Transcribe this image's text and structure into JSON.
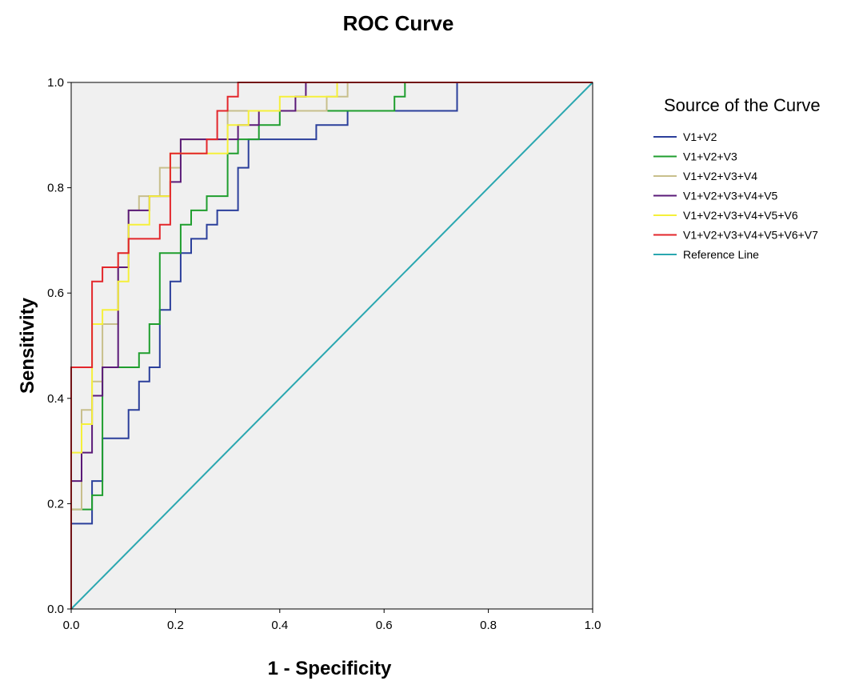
{
  "chart_data": {
    "type": "line",
    "title": "ROC Curve",
    "xlabel": "1 - Specificity",
    "ylabel": "Sensitivity",
    "xlim": [
      0.0,
      1.0
    ],
    "ylim": [
      0.0,
      1.0
    ],
    "xticks": [
      "0.0",
      "0.2",
      "0.4",
      "0.6",
      "0.8",
      "1.0"
    ],
    "yticks": [
      "0.0",
      "0.2",
      "0.4",
      "0.6",
      "0.8",
      "1.0"
    ],
    "grid": false,
    "plot_background": "#f0f0f0",
    "legend": {
      "title": "Source of the Curve",
      "position": "right"
    },
    "series": [
      {
        "name": "V1+V2",
        "color": "#2b3f9b",
        "x": [
          0.0,
          0.0,
          0.04,
          0.04,
          0.06,
          0.06,
          0.11,
          0.11,
          0.13,
          0.13,
          0.15,
          0.15,
          0.17,
          0.17,
          0.19,
          0.19,
          0.21,
          0.21,
          0.23,
          0.23,
          0.26,
          0.26,
          0.28,
          0.28,
          0.32,
          0.32,
          0.34,
          0.34,
          0.4,
          0.4,
          0.47,
          0.47,
          0.53,
          0.53,
          0.74,
          0.74,
          1.0
        ],
        "y": [
          0.0,
          0.162,
          0.162,
          0.243,
          0.243,
          0.324,
          0.324,
          0.378,
          0.378,
          0.432,
          0.432,
          0.459,
          0.459,
          0.568,
          0.568,
          0.622,
          0.622,
          0.676,
          0.676,
          0.703,
          0.703,
          0.73,
          0.73,
          0.757,
          0.757,
          0.838,
          0.838,
          0.892,
          0.892,
          0.892,
          0.892,
          0.919,
          0.919,
          0.946,
          0.946,
          1.0,
          1.0
        ]
      },
      {
        "name": "V1+V2+V3",
        "color": "#1f9e2e",
        "x": [
          0.0,
          0.0,
          0.04,
          0.04,
          0.06,
          0.06,
          0.11,
          0.11,
          0.13,
          0.13,
          0.15,
          0.15,
          0.17,
          0.17,
          0.21,
          0.21,
          0.23,
          0.23,
          0.26,
          0.26,
          0.3,
          0.3,
          0.32,
          0.32,
          0.36,
          0.36,
          0.4,
          0.4,
          0.62,
          0.62,
          0.64,
          0.64,
          1.0
        ],
        "y": [
          0.0,
          0.189,
          0.189,
          0.216,
          0.216,
          0.459,
          0.459,
          0.459,
          0.459,
          0.486,
          0.486,
          0.541,
          0.541,
          0.676,
          0.676,
          0.73,
          0.73,
          0.757,
          0.757,
          0.784,
          0.784,
          0.865,
          0.865,
          0.892,
          0.892,
          0.919,
          0.919,
          0.946,
          0.946,
          0.973,
          0.973,
          1.0,
          1.0
        ]
      },
      {
        "name": "V1+V2+V3+V4",
        "color": "#c8bf8c",
        "x": [
          0.0,
          0.0,
          0.02,
          0.02,
          0.04,
          0.04,
          0.06,
          0.06,
          0.09,
          0.09,
          0.11,
          0.11,
          0.13,
          0.13,
          0.17,
          0.17,
          0.21,
          0.21,
          0.3,
          0.3,
          0.49,
          0.49,
          0.53,
          0.53,
          1.0
        ],
        "y": [
          0.0,
          0.189,
          0.189,
          0.378,
          0.378,
          0.432,
          0.432,
          0.541,
          0.541,
          0.676,
          0.676,
          0.757,
          0.757,
          0.784,
          0.784,
          0.838,
          0.838,
          0.892,
          0.892,
          0.946,
          0.946,
          0.973,
          0.973,
          1.0,
          1.0
        ]
      },
      {
        "name": "V1+V2+V3+V4+V5",
        "color": "#5a1a78",
        "x": [
          0.0,
          0.0,
          0.02,
          0.02,
          0.04,
          0.04,
          0.06,
          0.06,
          0.09,
          0.09,
          0.11,
          0.11,
          0.15,
          0.15,
          0.19,
          0.19,
          0.21,
          0.21,
          0.28,
          0.28,
          0.32,
          0.32,
          0.36,
          0.36,
          0.43,
          0.43,
          0.45,
          0.45,
          1.0
        ],
        "y": [
          0.0,
          0.243,
          0.243,
          0.297,
          0.297,
          0.405,
          0.405,
          0.459,
          0.459,
          0.649,
          0.649,
          0.757,
          0.757,
          0.784,
          0.784,
          0.811,
          0.811,
          0.892,
          0.892,
          0.892,
          0.892,
          0.919,
          0.919,
          0.946,
          0.946,
          0.973,
          0.973,
          1.0,
          1.0
        ]
      },
      {
        "name": "V1+V2+V3+V4+V5+V6",
        "color": "#f5f03a",
        "x": [
          0.0,
          0.0,
          0.02,
          0.02,
          0.04,
          0.04,
          0.06,
          0.06,
          0.09,
          0.09,
          0.11,
          0.11,
          0.15,
          0.15,
          0.19,
          0.19,
          0.26,
          0.26,
          0.3,
          0.3,
          0.34,
          0.34,
          0.4,
          0.4,
          0.51,
          0.51,
          1.0
        ],
        "y": [
          0.0,
          0.297,
          0.297,
          0.351,
          0.351,
          0.541,
          0.541,
          0.568,
          0.568,
          0.622,
          0.622,
          0.73,
          0.73,
          0.784,
          0.784,
          0.865,
          0.865,
          0.865,
          0.865,
          0.919,
          0.919,
          0.946,
          0.946,
          0.973,
          0.973,
          1.0,
          1.0
        ]
      },
      {
        "name": "V1+V2+V3+V4+V5+V6+V7",
        "color": "#e3262b",
        "x": [
          0.0,
          0.0,
          0.04,
          0.04,
          0.06,
          0.06,
          0.09,
          0.09,
          0.11,
          0.11,
          0.17,
          0.17,
          0.19,
          0.19,
          0.26,
          0.26,
          0.28,
          0.28,
          0.3,
          0.3,
          0.32,
          0.32,
          1.0
        ],
        "y": [
          0.0,
          0.459,
          0.459,
          0.622,
          0.622,
          0.649,
          0.649,
          0.676,
          0.676,
          0.703,
          0.703,
          0.73,
          0.73,
          0.865,
          0.865,
          0.892,
          0.892,
          0.946,
          0.946,
          0.973,
          0.973,
          1.0,
          1.0
        ]
      },
      {
        "name": "Reference Line",
        "color": "#2aa7b0",
        "x": [
          0.0,
          1.0
        ],
        "y": [
          0.0,
          1.0
        ]
      }
    ]
  }
}
